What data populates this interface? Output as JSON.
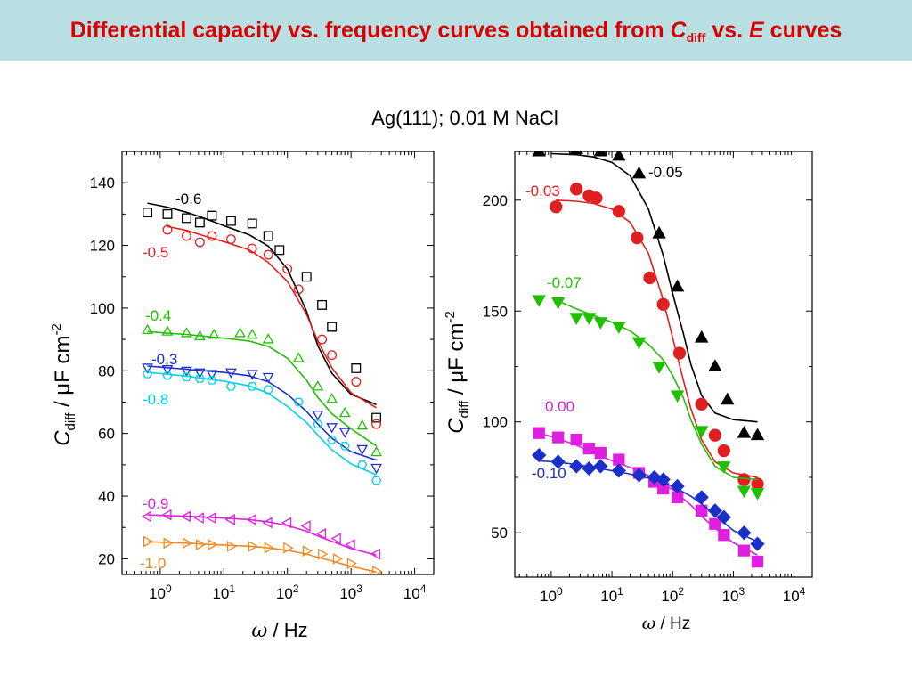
{
  "slide": {
    "title_main": "Differential capacity vs. frequency curves obtained from ",
    "title_c": "C",
    "title_sub": "diff",
    "title_mid": " vs. ",
    "title_e": "E",
    "title_end": " curves",
    "chart_heading": "Ag(111); 0.01 M NaCl"
  },
  "chart_data": [
    {
      "type": "scatter",
      "title": "",
      "xlabel": "ω / Hz",
      "ylabel": "C_diff / μF cm^-2",
      "xscale": "log",
      "xlim_log10": [
        -0.6,
        4.3
      ],
      "ylim": [
        15,
        150
      ],
      "xticks": [
        "10^0",
        "10^1",
        "10^2",
        "10^3",
        "10^4"
      ],
      "yticks": [
        20,
        40,
        60,
        80,
        100,
        120,
        140
      ],
      "series": [
        {
          "name": "-0.6",
          "color": "#000000",
          "marker": "square",
          "x": [
            0.63,
            1.3,
            2.6,
            4.2,
            6.5,
            13,
            28,
            50,
            75,
            200,
            350,
            500,
            1200,
            2500
          ],
          "y": [
            130.5,
            130.0,
            128.7,
            127.3,
            129.5,
            127.8,
            127.0,
            123.0,
            118.5,
            110.0,
            101.0,
            94.0,
            80.8,
            65.0
          ],
          "fit_x": [
            0.63,
            1.3,
            2.6,
            5,
            10,
            25,
            50,
            100,
            200,
            300,
            500,
            1000,
            2500
          ],
          "fit_y": [
            133.5,
            132.2,
            130.6,
            128.6,
            126.3,
            123.4,
            119.8,
            112.5,
            99.0,
            88.0,
            79.2,
            72.5,
            69.2
          ]
        },
        {
          "name": "-0.5",
          "color": "#e02020",
          "marker": "circle",
          "x": [
            1.3,
            2.6,
            4.2,
            6.5,
            13,
            28,
            50,
            100,
            150,
            350,
            500,
            1200,
            2500
          ],
          "y": [
            125.0,
            123.0,
            121.0,
            123.0,
            122.0,
            119.0,
            117.0,
            112.5,
            106.0,
            90.0,
            85.0,
            76.5,
            63.0
          ],
          "fit_x": [
            1.3,
            2.6,
            5,
            10,
            25,
            50,
            100,
            200,
            300,
            500,
            1000,
            2500
          ],
          "fit_y": [
            126.0,
            124.8,
            123.0,
            121.2,
            118.6,
            114.6,
            108.5,
            98.0,
            89.5,
            81.0,
            73.0,
            68.2
          ]
        },
        {
          "name": "-0.4",
          "color": "#20c000",
          "marker": "triangle-up",
          "x": [
            0.63,
            1.3,
            2.6,
            4.2,
            7,
            18,
            28,
            50,
            150,
            300,
            500,
            800,
            1500,
            2500
          ],
          "y": [
            93.0,
            92.5,
            92.0,
            91.0,
            91.5,
            92.0,
            91.5,
            90.0,
            84.0,
            75.0,
            71.0,
            66.5,
            62.5,
            54.0
          ],
          "fit_x": [
            0.63,
            1.3,
            2.6,
            5,
            10,
            25,
            50,
            100,
            200,
            300,
            500,
            1000,
            2500
          ],
          "fit_y": [
            92.5,
            92.0,
            91.6,
            91.0,
            90.4,
            89.5,
            87.8,
            84.0,
            77.0,
            71.5,
            66.3,
            61.5,
            56.0
          ]
        },
        {
          "name": "-0.3",
          "color": "#1c2fc8",
          "marker": "triangle-down",
          "x": [
            0.63,
            1.3,
            2.6,
            4.2,
            6.5,
            13,
            28,
            50,
            300,
            500,
            800,
            1500,
            2500
          ],
          "y": [
            81.0,
            80.5,
            80.0,
            79.5,
            79.0,
            79.5,
            79.0,
            78.0,
            66.0,
            62.0,
            60.5,
            55.0,
            49.0
          ],
          "fit_x": [
            0.63,
            1.3,
            2.6,
            5,
            10,
            25,
            50,
            100,
            200,
            300,
            500,
            1000,
            2500
          ],
          "fit_y": [
            81.5,
            81.0,
            80.5,
            80.0,
            79.5,
            78.4,
            76.5,
            72.5,
            67.0,
            63.0,
            58.5,
            54.2,
            51.5
          ]
        },
        {
          "name": "-0.8",
          "color": "#00d0e8",
          "marker": "hexagon",
          "x": [
            0.63,
            1.3,
            2.6,
            4.2,
            6.5,
            13,
            28,
            50,
            150,
            300,
            500,
            800,
            1500,
            2500
          ],
          "y": [
            79.0,
            78.5,
            78.0,
            77.5,
            77.0,
            75.0,
            75.0,
            74.0,
            70.0,
            63.0,
            58.0,
            56.0,
            50.0,
            45.0
          ],
          "fit_x": [
            0.63,
            1.3,
            2.6,
            5,
            10,
            25,
            50,
            100,
            200,
            300,
            500,
            1000,
            2500
          ],
          "fit_y": [
            79.5,
            78.9,
            78.3,
            77.5,
            76.7,
            75.2,
            72.8,
            68.6,
            63.5,
            59.5,
            54.8,
            50.3,
            46.8
          ]
        },
        {
          "name": "-0.9",
          "color": "#e020e0",
          "marker": "triangle-left",
          "x": [
            0.63,
            1.3,
            2.6,
            4.2,
            6.5,
            13,
            28,
            50,
            100,
            200,
            350,
            600,
            1000,
            2500
          ],
          "y": [
            33.5,
            34.0,
            33.5,
            33.0,
            33.0,
            32.5,
            32.5,
            31.5,
            31.5,
            30.5,
            28.0,
            26.5,
            24.5,
            21.5
          ],
          "fit_x": [
            0.63,
            1.3,
            2.6,
            5,
            10,
            25,
            50,
            100,
            200,
            300,
            500,
            1000,
            2500
          ],
          "fit_y": [
            34.0,
            33.8,
            33.6,
            33.3,
            33.0,
            32.5,
            31.8,
            30.6,
            28.8,
            27.3,
            25.6,
            23.3,
            21.2
          ]
        },
        {
          "name": "-1.0",
          "color": "#f08a20",
          "marker": "triangle-right",
          "x": [
            0.63,
            1.3,
            2.6,
            4.2,
            6.5,
            13,
            28,
            50,
            100,
            200,
            350,
            600,
            1000,
            2500
          ],
          "y": [
            25.5,
            25.0,
            25.0,
            24.5,
            24.5,
            24.0,
            24.0,
            23.5,
            23.5,
            22.5,
            21.5,
            20.0,
            18.5,
            16.0
          ],
          "fit_x": [
            0.63,
            1.3,
            2.6,
            5,
            10,
            25,
            50,
            100,
            200,
            300,
            500,
            1000,
            2500
          ],
          "fit_y": [
            25.5,
            25.2,
            25.0,
            24.7,
            24.4,
            24.0,
            23.5,
            22.7,
            21.5,
            20.5,
            19.3,
            17.6,
            15.8
          ]
        }
      ]
    },
    {
      "type": "scatter",
      "title": "",
      "xlabel": "ω / Hz",
      "ylabel": "C_diff / μF cm^-2",
      "xscale": "log",
      "xlim_log10": [
        -0.6,
        4.3
      ],
      "ylim": [
        30,
        222
      ],
      "xticks": [
        "10^0",
        "10^1",
        "10^2",
        "10^3",
        "10^4"
      ],
      "yticks": [
        50,
        100,
        150,
        200
      ],
      "series": [
        {
          "name": "-0.05",
          "color": "#000000",
          "marker": "triangle-up-filled",
          "x": [
            0.63,
            1.3,
            2.6,
            4.2,
            6.5,
            13,
            28,
            60,
            120,
            300,
            500,
            800,
            1500,
            2500
          ],
          "y": [
            222.0,
            225.0,
            223.0,
            224.0,
            222.0,
            220.0,
            212.0,
            185.0,
            161.0,
            138.0,
            125.0,
            110.0,
            95.0,
            94.0
          ],
          "fit_x": [
            1,
            2.6,
            5,
            10,
            20,
            40,
            70,
            100,
            150,
            200,
            300,
            500,
            1000,
            2500
          ],
          "fit_y": [
            221.0,
            220.5,
            219.5,
            217.0,
            211.0,
            196.0,
            175.0,
            158.0,
            140.0,
            126.0,
            112.0,
            104.0,
            101.0,
            100.0
          ]
        },
        {
          "name": "-0.03",
          "color": "#e02020",
          "marker": "circle-filled",
          "x": [
            1.2,
            2.6,
            4.2,
            5.5,
            13,
            26,
            42,
            70,
            130,
            300,
            500,
            700,
            1500,
            2500
          ],
          "y": [
            197.0,
            205.0,
            202.0,
            201.0,
            195.0,
            183.0,
            165.0,
            153.0,
            131.0,
            108.0,
            94.0,
            87.0,
            74.0,
            72.0
          ],
          "fit_x": [
            1.2,
            2.6,
            5,
            10,
            20,
            40,
            70,
            100,
            150,
            200,
            300,
            500,
            1000,
            2500
          ],
          "fit_y": [
            200.0,
            199.5,
            198.5,
            196.0,
            190.0,
            176.0,
            155.0,
            138.0,
            119.0,
            106.0,
            92.0,
            82.0,
            77.0,
            75.0
          ]
        },
        {
          "name": "-0.07",
          "color": "#20c000",
          "marker": "triangle-down-filled",
          "x": [
            0.63,
            1.3,
            2.6,
            4.2,
            6.5,
            13,
            28,
            60,
            120,
            300,
            700,
            1500,
            2500
          ],
          "y": [
            155.0,
            154.0,
            147.0,
            147.0,
            145.0,
            143.0,
            136.0,
            125.0,
            112.0,
            96.0,
            80.0,
            69.0,
            68.0
          ],
          "fit_x": [
            1.2,
            2.6,
            5,
            10,
            20,
            40,
            70,
            100,
            150,
            200,
            300,
            500,
            1000,
            2500
          ],
          "fit_y": [
            155.0,
            151.0,
            148.0,
            145.0,
            141.0,
            135.0,
            128.0,
            121.0,
            111.0,
            101.0,
            90.0,
            80.0,
            75.0,
            74.0
          ]
        },
        {
          "name": "0.00",
          "color": "#e020e0",
          "marker": "square-filled",
          "x": [
            0.63,
            1.3,
            2.6,
            4.2,
            6.5,
            13,
            28,
            50,
            70,
            120,
            300,
            500,
            700,
            1500,
            2500
          ],
          "y": [
            95.0,
            93.0,
            92.0,
            88.0,
            86.0,
            83.0,
            77.0,
            73.0,
            70.0,
            66.0,
            60.0,
            54.0,
            49.0,
            42.0,
            37.0
          ],
          "fit_x": [
            0.63,
            1.3,
            2.6,
            5,
            10,
            25,
            50,
            100,
            200,
            300,
            500,
            1000,
            2500
          ],
          "fit_y": [
            95.0,
            92.5,
            89.5,
            86.0,
            82.5,
            78.5,
            74.5,
            69.5,
            62.5,
            57.5,
            52.0,
            45.5,
            40.0
          ]
        },
        {
          "name": "-0.10",
          "color": "#1c2fc8",
          "marker": "diamond-filled",
          "x": [
            0.63,
            1.3,
            2.6,
            4.2,
            6.5,
            13,
            28,
            50,
            70,
            120,
            300,
            500,
            700,
            1500,
            2500
          ],
          "y": [
            85.0,
            82.0,
            80.0,
            79.0,
            80.0,
            78.0,
            76.0,
            75.0,
            74.0,
            71.0,
            66.0,
            60.0,
            57.0,
            50.0,
            45.0
          ],
          "fit_x": [
            0.63,
            1.3,
            2.6,
            5,
            10,
            25,
            50,
            100,
            200,
            300,
            500,
            1000,
            2500
          ],
          "fit_y": [
            82.5,
            81.8,
            80.8,
            79.5,
            78.0,
            76.0,
            74.0,
            71.0,
            66.5,
            63.0,
            58.0,
            51.0,
            46.0
          ]
        }
      ]
    }
  ]
}
